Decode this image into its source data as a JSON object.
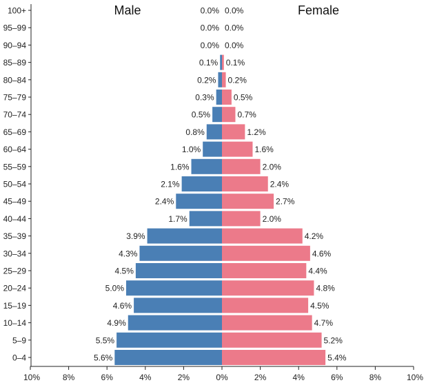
{
  "chart_data": {
    "type": "bar",
    "orientation": "horizontal",
    "layout": "population-pyramid",
    "categories": [
      "0–4",
      "5–9",
      "10–14",
      "15–19",
      "20–24",
      "25–29",
      "30–34",
      "35–39",
      "40–44",
      "45–49",
      "50–54",
      "55–59",
      "60–64",
      "65–69",
      "70–74",
      "75–79",
      "80–84",
      "85–89",
      "90–94",
      "95–99",
      "100+"
    ],
    "series": [
      {
        "name": "Male",
        "color": "#4a7fb5",
        "values": [
          5.6,
          5.5,
          4.9,
          4.6,
          5.0,
          4.5,
          4.3,
          3.9,
          1.7,
          2.4,
          2.1,
          1.6,
          1.0,
          0.8,
          0.5,
          0.3,
          0.2,
          0.1,
          0.0,
          0.0,
          0.0
        ],
        "labels": [
          "5.6%",
          "5.5%",
          "4.9%",
          "4.6%",
          "5.0%",
          "4.5%",
          "4.3%",
          "3.9%",
          "1.7%",
          "2.4%",
          "2.1%",
          "1.6%",
          "1.0%",
          "0.8%",
          "0.5%",
          "0.3%",
          "0.2%",
          "0.1%",
          "0.0%",
          "0.0%",
          "0.0%"
        ]
      },
      {
        "name": "Female",
        "color": "#ec7a8a",
        "values": [
          5.4,
          5.2,
          4.7,
          4.5,
          4.8,
          4.4,
          4.6,
          4.2,
          2.0,
          2.7,
          2.4,
          2.0,
          1.6,
          1.2,
          0.7,
          0.5,
          0.2,
          0.1,
          0.0,
          0.0,
          0.0
        ],
        "labels": [
          "5.4%",
          "5.2%",
          "4.7%",
          "4.5%",
          "4.8%",
          "4.4%",
          "4.6%",
          "4.2%",
          "2.0%",
          "2.7%",
          "2.4%",
          "2.0%",
          "1.6%",
          "1.2%",
          "0.7%",
          "0.5%",
          "0.2%",
          "0.1%",
          "0.0%",
          "0.0%",
          "0.0%"
        ]
      }
    ],
    "x_ticks": [
      "10%",
      "8%",
      "6%",
      "4%",
      "2%",
      "0%",
      "2%",
      "4%",
      "6%",
      "8%",
      "10%"
    ],
    "xlim": [
      -10,
      10
    ],
    "grid": false
  }
}
